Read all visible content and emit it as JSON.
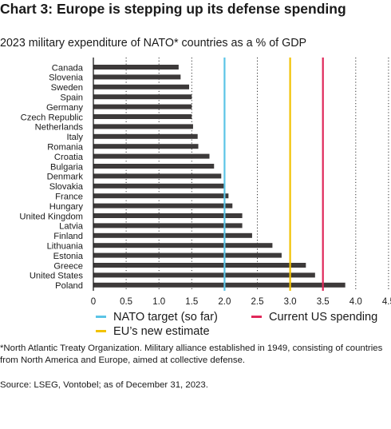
{
  "title": "Chart 3: Europe is stepping up its defense spending",
  "subtitle": "2023 military expenditure of NATO* countries as a % of GDP",
  "legend": {
    "nato_target": "NATO target (so far)",
    "us_spending": "Current US spending",
    "eu_estimate": "EU’s new estimate"
  },
  "colors": {
    "bar": "#3d3a3a",
    "nato_target": "#5bc4e6",
    "us_spending": "#e0285a",
    "eu_estimate": "#f2c200",
    "grid": "#333333"
  },
  "chart_data": {
    "type": "bar",
    "orientation": "horizontal",
    "categories": [
      "Canada",
      "Slovenia",
      "Sweden",
      "Spain",
      "Germany",
      "Czech Republic",
      "Netherlands",
      "Italy",
      "Romania",
      "Croatia",
      "Bulgaria",
      "Denmark",
      "Slovakia",
      "France",
      "Hungary",
      "United Kingdom",
      "Latvia",
      "Finland",
      "Lithuania",
      "Estonia",
      "Greece",
      "United States",
      "Poland"
    ],
    "values": [
      1.3,
      1.33,
      1.46,
      1.5,
      1.5,
      1.5,
      1.52,
      1.59,
      1.6,
      1.77,
      1.84,
      1.95,
      2.0,
      2.06,
      2.12,
      2.27,
      2.27,
      2.42,
      2.73,
      2.87,
      3.24,
      3.38,
      3.84
    ],
    "xticks": [
      "0",
      "0.5",
      "1.0",
      "1.5",
      "2.0",
      "2.5",
      "3.0",
      "3.5",
      "4.0",
      "4.5"
    ],
    "xlim": [
      0,
      4.5
    ],
    "reference_lines": [
      {
        "key": "nato_target",
        "value": 2.0
      },
      {
        "key": "eu_estimate",
        "value": 3.0
      },
      {
        "key": "us_spending",
        "value": 3.5
      }
    ],
    "grid": "vertical dotted",
    "legend_position": "bottom"
  },
  "footnote": "*North Atlantic Treaty Organization. Military alliance established in 1949, consisting of countries from North America and Europe, aimed at collective defense.",
  "source": "Source: LSEG, Vontobel; as of December 31, 2023."
}
